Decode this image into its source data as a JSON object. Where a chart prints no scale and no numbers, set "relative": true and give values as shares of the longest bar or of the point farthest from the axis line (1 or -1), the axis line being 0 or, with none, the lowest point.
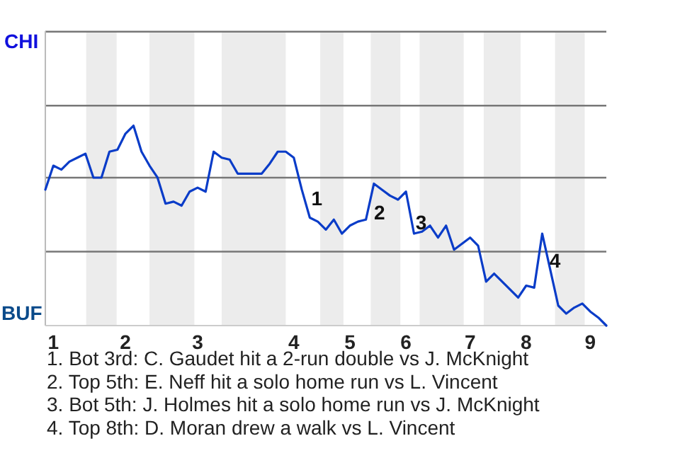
{
  "chart_data": {
    "type": "line",
    "relative": true,
    "categories": [
      null,
      "1",
      null,
      null,
      null,
      null,
      null,
      null,
      null,
      null,
      "2",
      null,
      null,
      null,
      null,
      null,
      null,
      null,
      null,
      "3",
      null,
      null,
      null,
      null,
      null,
      null,
      null,
      null,
      null,
      null,
      null,
      "4",
      null,
      null,
      null,
      null,
      null,
      null,
      "5",
      null,
      null,
      null,
      null,
      null,
      null,
      "6",
      null,
      null,
      null,
      null,
      null,
      null,
      null,
      "7",
      null,
      null,
      null,
      null,
      null,
      null,
      "8",
      null,
      null,
      null,
      null,
      null,
      null,
      null,
      "9",
      null,
      null
    ],
    "series": [
      {
        "color": "#0a3cc8",
        "values": [
          0.68,
          0.8,
          0.78,
          0.82,
          0.84,
          0.86,
          0.74,
          0.74,
          0.87,
          0.88,
          0.96,
          1,
          0.87,
          0.8,
          0.74,
          0.61,
          0.62,
          0.6,
          0.67,
          0.69,
          0.67,
          0.87,
          0.84,
          0.83,
          0.76,
          0.76,
          0.76,
          0.76,
          0.81,
          0.87,
          0.87,
          0.84,
          0.68,
          0.54,
          0.52,
          0.48,
          0.53,
          0.46,
          0.5,
          0.52,
          0.53,
          0.71,
          0.68,
          0.65,
          0.63,
          0.67,
          0.46,
          0.47,
          0.5,
          0.44,
          0.5,
          0.38,
          0.41,
          0.44,
          0.4,
          0.22,
          0.26,
          0.22,
          0.18,
          0.14,
          0.2,
          0.19,
          0.46,
          0.28,
          0.1,
          0.06,
          0.09,
          0.11,
          0.07,
          0.04,
          0
        ]
      }
    ],
    "marker": "none",
    "line_style": "solid",
    "ref_lines": [
      {
        "axis": "y",
        "value": 0.37,
        "color": "#777777"
      },
      {
        "axis": "y",
        "value": 0.74,
        "color": "#777777"
      },
      {
        "axis": "y",
        "value": 1.1,
        "color": "#777777"
      },
      {
        "axis": "y",
        "value": 1.47,
        "color": "#777777"
      }
    ],
    "annotations": [
      "CHI",
      "BUF",
      "1",
      "2",
      "3",
      "4",
      "1. Bot 3rd: C. Gaudet hit a 2-run double vs J. McKnight",
      "2. Top 5th: E. Neff hit a solo home run vs L. Vincent",
      "3. Bot 5th: J. Holmes hit a solo home run vs J. McKnight",
      "4. Top 8th: D. Moran drew a walk vs L. Vincent"
    ]
  }
}
